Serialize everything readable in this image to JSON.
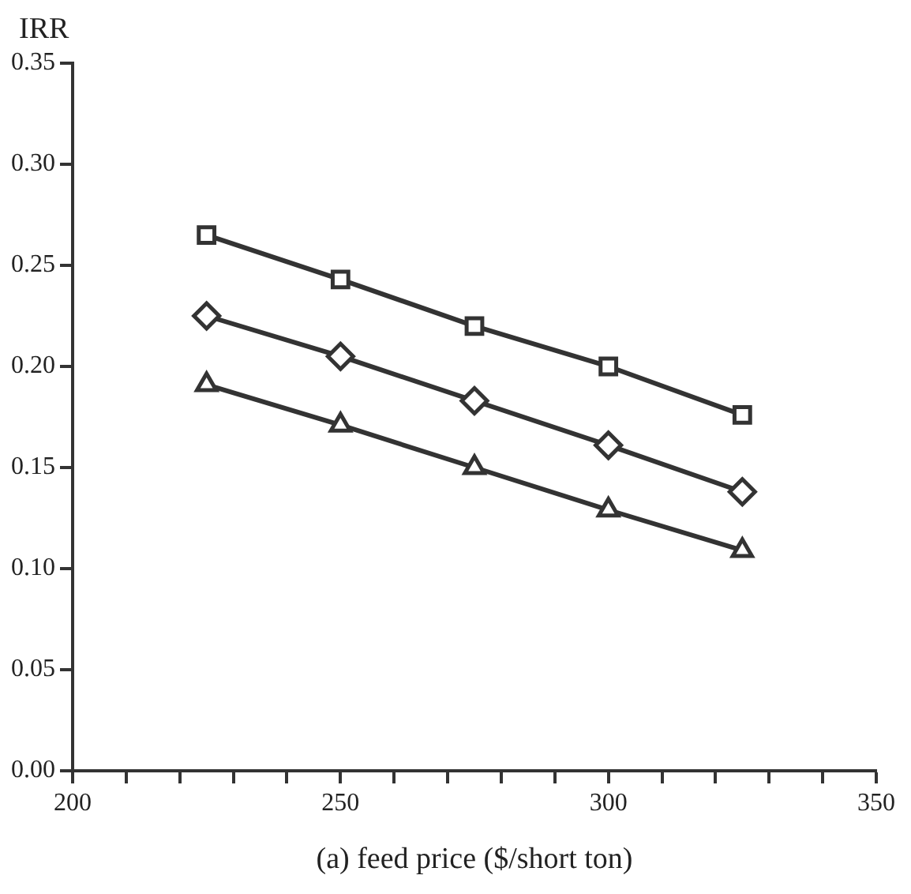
{
  "chart_data": {
    "type": "line",
    "xlabel": "(a) feed price ($/short ton)",
    "ylabel": "IRR",
    "x": [
      225,
      250,
      275,
      300,
      325
    ],
    "series": [
      {
        "color": "#333333",
        "marker": "square",
        "values": [
          0.265,
          0.243,
          0.22,
          0.2,
          0.176
        ]
      },
      {
        "color": "#333333",
        "marker": "diamond",
        "values": [
          0.225,
          0.205,
          0.183,
          0.161,
          0.138
        ]
      },
      {
        "color": "#333333",
        "marker": "triangle",
        "values": [
          0.191,
          0.171,
          0.15,
          0.129,
          0.109
        ]
      }
    ],
    "xlim": [
      200,
      350
    ],
    "xticks": [
      200,
      {
        "value": 210,
        "label": null
      },
      {
        "value": 220,
        "label": null
      },
      {
        "value": 230,
        "label": null
      },
      {
        "value": 240,
        "label": null
      },
      250,
      {
        "value": 260,
        "label": null
      },
      {
        "value": 270,
        "label": null
      },
      {
        "value": 280,
        "label": null
      },
      {
        "value": 290,
        "label": null
      },
      300,
      {
        "value": 310,
        "label": null
      },
      {
        "value": 320,
        "label": null
      },
      {
        "value": 330,
        "label": null
      },
      {
        "value": 340,
        "label": null
      },
      350
    ],
    "ylim": [
      0,
      0.35
    ],
    "yticks": [
      {
        "value": 0,
        "label": "0.00"
      },
      {
        "value": 0.05,
        "label": "0.05"
      },
      {
        "value": 0.1,
        "label": "0.10"
      },
      {
        "value": 0.15,
        "label": "0.15"
      },
      {
        "value": 0.2,
        "label": "0.20"
      },
      {
        "value": 0.25,
        "label": "0.25"
      },
      {
        "value": 0.3,
        "label": "0.30"
      },
      {
        "value": 0.35,
        "label": "0.35"
      }
    ],
    "grid": false,
    "legend": false
  }
}
